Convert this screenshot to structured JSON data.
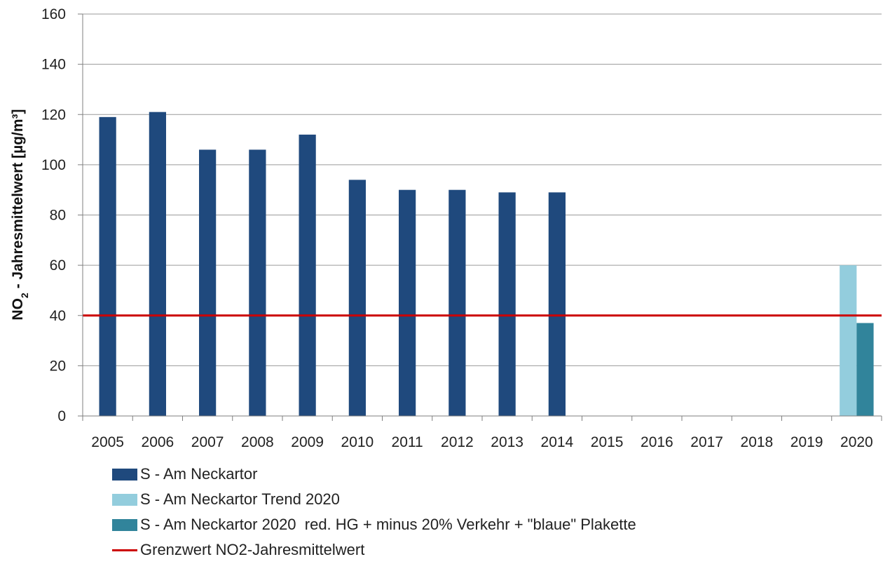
{
  "chart_data": {
    "type": "bar",
    "categories": [
      "2005",
      "2006",
      "2007",
      "2008",
      "2009",
      "2010",
      "2011",
      "2012",
      "2013",
      "2014",
      "2015",
      "2016",
      "2017",
      "2018",
      "2019",
      "2020"
    ],
    "ylabel_main": "NO",
    "ylabel_sub": "2",
    "ylabel_rest": " - Jahresmittelwert [µg/m³]",
    "ylim": [
      0,
      160
    ],
    "yticks": [
      0,
      20,
      40,
      60,
      80,
      100,
      120,
      140,
      160
    ],
    "grid": true,
    "legend_position": "bottom",
    "series": [
      {
        "name": "S - Am Neckartor",
        "color": "#1f497d",
        "values": [
          119,
          121,
          106,
          106,
          112,
          94,
          90,
          90,
          89,
          89,
          null,
          null,
          null,
          null,
          null,
          null
        ]
      },
      {
        "name": "S - Am Neckartor Trend 2020",
        "color": "#93cddd",
        "values": [
          null,
          null,
          null,
          null,
          null,
          null,
          null,
          null,
          null,
          null,
          null,
          null,
          null,
          null,
          null,
          60
        ]
      },
      {
        "name": "S - Am Neckartor 2020  red. HG + minus 20% Verkehr + \"blaue\" Plakette",
        "color": "#31849b",
        "values": [
          null,
          null,
          null,
          null,
          null,
          null,
          null,
          null,
          null,
          null,
          null,
          null,
          null,
          null,
          null,
          37
        ]
      }
    ],
    "reference_line": {
      "name": "Grenzwert NO2-Jahresmittelwert",
      "value": 40,
      "color": "#cc0000"
    }
  }
}
